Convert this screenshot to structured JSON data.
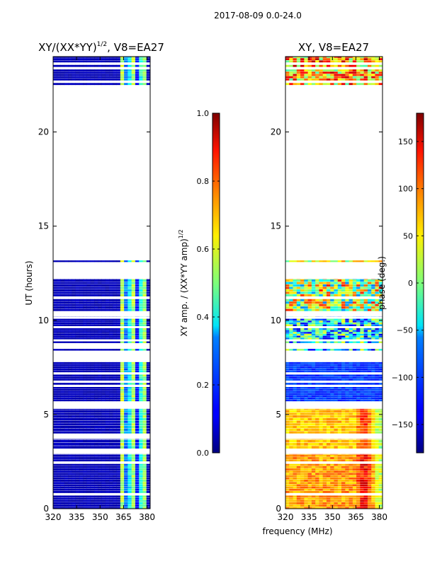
{
  "suptitle": "2017-08-09 0.0-24.0",
  "chart_data": [
    {
      "type": "heatmap",
      "title": "XY/(XX*YY)",
      "title_sup": "1/2",
      "title_suffix": ", V8=EA27",
      "xlabel": "",
      "ylabel": "UT (hours)",
      "xlim": [
        320,
        382
      ],
      "ylim": [
        0,
        24
      ],
      "xticks": [
        320,
        335,
        350,
        365,
        380
      ],
      "yticks": [
        0,
        5,
        10,
        15,
        20
      ],
      "colorbar": {
        "label": "XY amp. / (XX*YY amp)",
        "label_sup": "1/2",
        "range": [
          0.0,
          1.0
        ],
        "ticks": [
          "0.0",
          "0.2",
          "0.4",
          "0.6",
          "0.8",
          "1.0"
        ]
      },
      "data_note": "Mostly low amplitude (~0.05) with elevated values 0.3-0.6 in 362-380 MHz; data present 0-12.2 h, 13.1-13.2 h, 22.5-24 h"
    },
    {
      "type": "heatmap",
      "title": "XY, V8=EA27",
      "xlabel": "frequency (MHz)",
      "ylabel": "",
      "xlim": [
        320,
        382
      ],
      "ylim": [
        0,
        24
      ],
      "xticks": [
        320,
        335,
        350,
        365,
        380
      ],
      "yticks": [
        0,
        5,
        10,
        15,
        20
      ],
      "colorbar": {
        "label": "phase (deg.)",
        "range": [
          -180,
          180
        ],
        "ticks": [
          "−150",
          "−100",
          "−50",
          "0",
          "50",
          "100",
          "150"
        ]
      },
      "data_note": "Phase varies by time block: ~100 deg near 0-5.5 h, ~-120 deg 6-8 h, mixed noisy 8.5-12 h, ~80 deg at 22.5-24 h"
    }
  ]
}
